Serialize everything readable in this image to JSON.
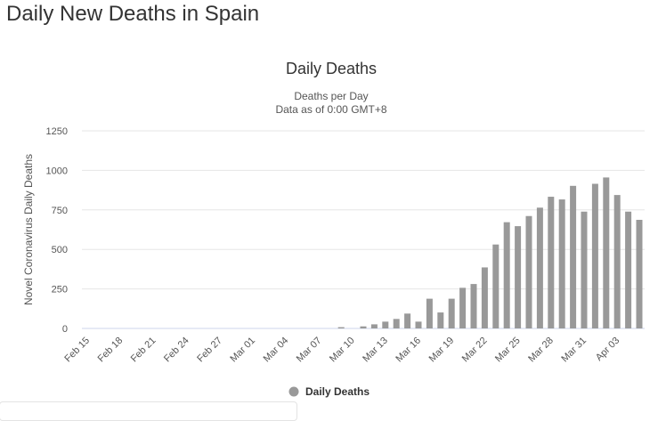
{
  "page_title": "Daily New Deaths in Spain",
  "chart_data": {
    "type": "bar",
    "title": "Daily Deaths",
    "subtitle": [
      "Deaths per Day",
      "Data as of 0:00 GMT+8"
    ],
    "xlabel": "",
    "ylabel": "Novel Coronavirus Daily Deaths",
    "ylim": [
      0,
      1250
    ],
    "yticks": [
      0,
      250,
      500,
      750,
      1000,
      1250
    ],
    "grid": true,
    "legend": {
      "label": "Daily Deaths",
      "placement": "bottom-center"
    },
    "bar_color": "#999999",
    "categories": [
      "Feb 15",
      "Feb 16",
      "Feb 17",
      "Feb 18",
      "Feb 19",
      "Feb 20",
      "Feb 21",
      "Feb 22",
      "Feb 23",
      "Feb 24",
      "Feb 25",
      "Feb 26",
      "Feb 27",
      "Feb 28",
      "Feb 29",
      "Mar 01",
      "Mar 02",
      "Mar 03",
      "Mar 04",
      "Mar 05",
      "Mar 06",
      "Mar 07",
      "Mar 08",
      "Mar 09",
      "Mar 10",
      "Mar 11",
      "Mar 12",
      "Mar 13",
      "Mar 14",
      "Mar 15",
      "Mar 16",
      "Mar 17",
      "Mar 18",
      "Mar 19",
      "Mar 20",
      "Mar 21",
      "Mar 22",
      "Mar 23",
      "Mar 24",
      "Mar 25",
      "Mar 26",
      "Mar 27",
      "Mar 28",
      "Mar 29",
      "Mar 30",
      "Mar 31",
      "Apr 01",
      "Apr 02",
      "Apr 03",
      "Apr 04",
      "Apr 05"
    ],
    "values": [
      0,
      0,
      0,
      0,
      0,
      0,
      0,
      0,
      0,
      0,
      0,
      0,
      0,
      0,
      0,
      0,
      0,
      0,
      0,
      0,
      0,
      0,
      0,
      8,
      0,
      13,
      26,
      43,
      60,
      94,
      43,
      188,
      101,
      188,
      257,
      281,
      386,
      531,
      672,
      647,
      711,
      764,
      833,
      816,
      902,
      739,
      915,
      955,
      844,
      739,
      687
    ],
    "tick_labels": [
      "Feb 15",
      "Feb 18",
      "Feb 21",
      "Feb 24",
      "Feb 27",
      "Mar 01",
      "Mar 04",
      "Mar 07",
      "Mar 10",
      "Mar 13",
      "Mar 16",
      "Mar 19",
      "Mar 22",
      "Mar 25",
      "Mar 28",
      "Mar 31",
      "Apr 03"
    ]
  }
}
